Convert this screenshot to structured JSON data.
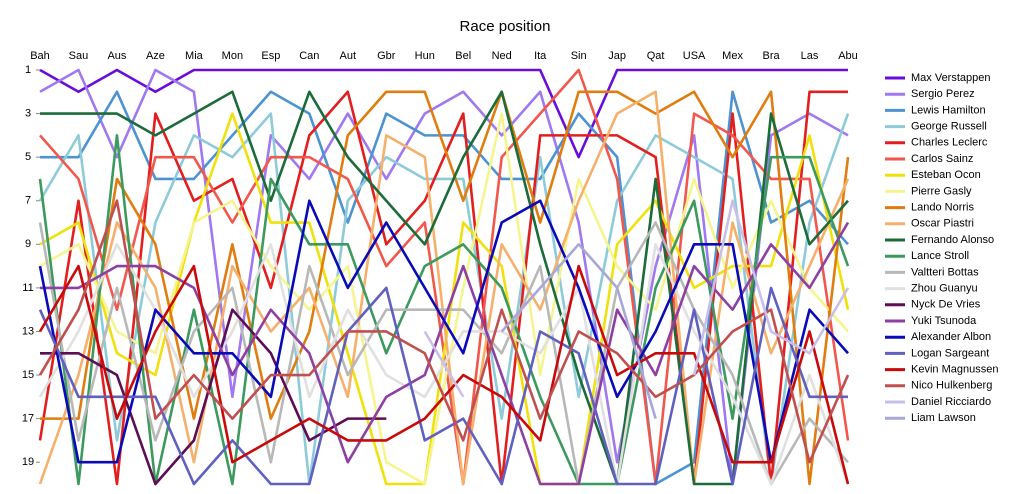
{
  "chart_data": {
    "type": "line",
    "title": "Race position",
    "categories": [
      "Bah",
      "Sau",
      "Aus",
      "Aze",
      "Mia",
      "Mon",
      "Esp",
      "Can",
      "Aut",
      "Gbr",
      "Hun",
      "Bel",
      "Ned",
      "Ita",
      "Sin",
      "Jap",
      "Qat",
      "USA",
      "Mex",
      "Bra",
      "Las",
      "Abu"
    ],
    "ylim": [
      20,
      1
    ],
    "yticks": [
      1,
      3,
      5,
      7,
      9,
      11,
      13,
      15,
      17,
      19
    ],
    "reversed": true,
    "series": [
      {
        "name": "Max Verstappen",
        "color": "#6a0dd9",
        "values": [
          1,
          2,
          1,
          2,
          1,
          1,
          1,
          1,
          1,
          1,
          1,
          1,
          1,
          1,
          5,
          1,
          1,
          1,
          1,
          1,
          1,
          1
        ]
      },
      {
        "name": "Sergio Perez",
        "color": "#a078f0",
        "values": [
          2,
          1,
          5,
          1,
          2,
          16,
          4,
          6,
          3,
          6,
          3,
          2,
          4,
          2,
          8,
          19,
          10,
          4,
          20,
          4,
          3,
          4
        ]
      },
      {
        "name": "Lewis Hamilton",
        "color": "#4d93d1",
        "values": [
          5,
          5,
          2,
          6,
          6,
          4,
          2,
          3,
          8,
          3,
          4,
          4,
          6,
          6,
          3,
          5,
          20,
          19,
          2,
          8,
          7,
          9
        ]
      },
      {
        "name": "George Russell",
        "color": "#8ecbd9",
        "values": [
          7,
          4,
          18,
          8,
          4,
          5,
          3,
          20,
          7,
          5,
          6,
          6,
          17,
          5,
          16,
          7,
          4,
          5,
          6,
          20,
          8,
          3
        ]
      },
      {
        "name": "Charles Leclerc",
        "color": "#e31e1e",
        "values": [
          18,
          7,
          20,
          3,
          7,
          6,
          11,
          4,
          2,
          9,
          7,
          3,
          20,
          4,
          4,
          4,
          5,
          20,
          3,
          20,
          2,
          2
        ]
      },
      {
        "name": "Carlos Sainz",
        "color": "#f2574c",
        "values": [
          4,
          6,
          12,
          5,
          5,
          8,
          5,
          5,
          6,
          10,
          8,
          20,
          5,
          3,
          1,
          6,
          20,
          3,
          4,
          6,
          6,
          18
        ]
      },
      {
        "name": "Esteban Ocon",
        "color": "#f0e10c",
        "values": [
          9,
          8,
          14,
          15,
          8,
          3,
          8,
          8,
          14,
          20,
          20,
          8,
          10,
          20,
          20,
          9,
          7,
          11,
          10,
          10,
          4,
          12
        ]
      },
      {
        "name": "Pierre Gasly",
        "color": "#f5f590",
        "values": [
          10,
          9,
          13,
          14,
          8,
          7,
          10,
          12,
          10,
          19,
          20,
          11,
          3,
          15,
          6,
          10,
          12,
          6,
          11,
          7,
          11,
          13
        ]
      },
      {
        "name": "Lando Norris",
        "color": "#e07d10",
        "values": [
          17,
          17,
          6,
          9,
          17,
          9,
          17,
          13,
          4,
          2,
          2,
          7,
          2,
          8,
          2,
          2,
          3,
          2,
          5,
          2,
          20,
          5
        ]
      },
      {
        "name": "Oscar Piastri",
        "color": "#f5b06c",
        "values": [
          20,
          15,
          8,
          11,
          19,
          10,
          13,
          11,
          16,
          4,
          5,
          20,
          9,
          12,
          7,
          3,
          2,
          20,
          8,
          14,
          10,
          6
        ]
      },
      {
        "name": "Fernando Alonso",
        "color": "#1c6b3a",
        "values": [
          3,
          3,
          3,
          4,
          3,
          2,
          7,
          2,
          5,
          7,
          9,
          5,
          2,
          9,
          15,
          20,
          6,
          20,
          20,
          3,
          9,
          7
        ]
      },
      {
        "name": "Lance Stroll",
        "color": "#3d9a5e",
        "values": [
          6,
          20,
          4,
          20,
          12,
          20,
          6,
          9,
          9,
          14,
          10,
          9,
          11,
          16,
          20,
          20,
          11,
          7,
          17,
          5,
          5,
          10
        ]
      },
      {
        "name": "Valtteri Bottas",
        "color": "#b8b8b8",
        "values": [
          8,
          18,
          11,
          18,
          13,
          11,
          19,
          10,
          15,
          12,
          12,
          12,
          14,
          10,
          20,
          11,
          8,
          12,
          15,
          20,
          17,
          19
        ]
      },
      {
        "name": "Zhou Guanyu",
        "color": "#e0e0e0",
        "values": [
          16,
          13,
          9,
          12,
          16,
          13,
          9,
          16,
          12,
          15,
          16,
          13,
          13,
          14,
          11,
          20,
          9,
          13,
          16,
          20,
          15,
          20
        ]
      },
      {
        "name": "Nyck De Vries",
        "color": "#5c0d55",
        "values": [
          14,
          14,
          15,
          20,
          18,
          12,
          14,
          18,
          17,
          17,
          null,
          null,
          null,
          null,
          null,
          null,
          null,
          null,
          null,
          null,
          null,
          null
        ]
      },
      {
        "name": "Yuki Tsunoda",
        "color": "#8e3fa3",
        "values": [
          11,
          11,
          10,
          10,
          11,
          15,
          12,
          14,
          19,
          16,
          15,
          10,
          15,
          20,
          20,
          12,
          15,
          10,
          12,
          9,
          11,
          8
        ]
      },
      {
        "name": "Alexander Albon",
        "color": "#0a0ab8",
        "values": [
          10,
          19,
          19,
          12,
          14,
          14,
          16,
          7,
          11,
          8,
          11,
          14,
          8,
          7,
          11,
          16,
          13,
          9,
          9,
          19,
          12,
          14
        ]
      },
      {
        "name": "Logan Sargeant",
        "color": "#6060c0",
        "values": [
          12,
          16,
          16,
          16,
          20,
          18,
          20,
          20,
          13,
          11,
          18,
          17,
          20,
          13,
          14,
          20,
          20,
          12,
          20,
          11,
          16,
          16
        ]
      },
      {
        "name": "Kevin Magnussen",
        "color": "#c80a0a",
        "values": [
          13,
          10,
          17,
          13,
          10,
          19,
          18,
          17,
          18,
          18,
          17,
          15,
          16,
          18,
          10,
          15,
          14,
          14,
          19,
          19,
          13,
          20
        ]
      },
      {
        "name": "Nico Hulkenberg",
        "color": "#c05050",
        "values": [
          15,
          12,
          7,
          17,
          15,
          17,
          15,
          15,
          13,
          13,
          14,
          18,
          12,
          17,
          13,
          14,
          16,
          15,
          13,
          12,
          19,
          15
        ]
      },
      {
        "name": "Daniel Ricciardo",
        "color": "#c8c0e8",
        "values": [
          null,
          null,
          null,
          null,
          null,
          null,
          null,
          null,
          null,
          null,
          13,
          16,
          null,
          null,
          null,
          null,
          null,
          15,
          7,
          13,
          14,
          11
        ]
      },
      {
        "name": "Liam Lawson",
        "color": "#a8a8d8",
        "values": [
          null,
          null,
          null,
          null,
          null,
          null,
          null,
          null,
          null,
          null,
          null,
          null,
          13,
          11,
          9,
          11,
          17,
          null,
          null,
          null,
          null,
          null
        ]
      }
    ]
  }
}
